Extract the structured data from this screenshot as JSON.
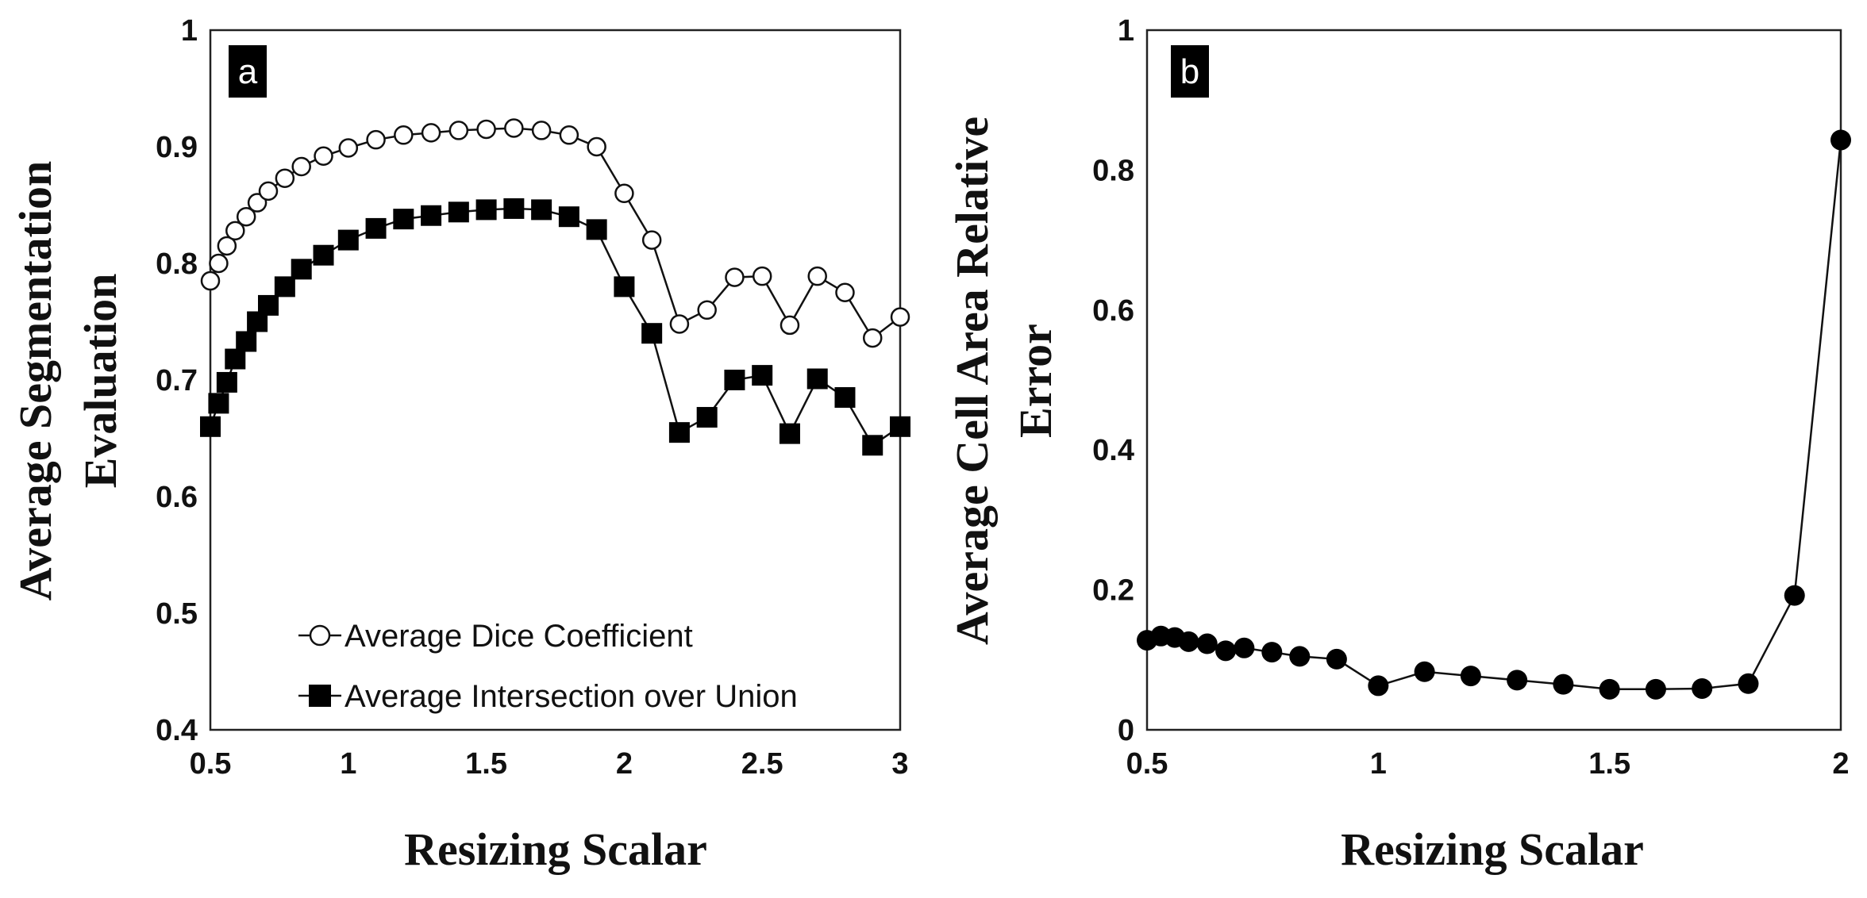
{
  "chart_data": [
    {
      "type": "line",
      "panel_label": "a",
      "xlabel": "Resizing Scalar",
      "ylabel_lines": [
        "Average Segmentation",
        "Evaluation"
      ],
      "xlim": [
        0.5,
        3
      ],
      "ylim": [
        0.4,
        1
      ],
      "xticks": [
        0.5,
        1,
        1.5,
        2,
        2.5,
        3
      ],
      "xtick_labels": [
        "0.5",
        "1",
        "1.5",
        "2",
        "2.5",
        "3"
      ],
      "yticks": [
        0.4,
        0.5,
        0.6,
        0.7,
        0.8,
        0.9,
        1
      ],
      "ytick_labels": [
        "0.4",
        "0.5",
        "0.6",
        "0.7",
        "0.8",
        "0.9",
        "1"
      ],
      "grid": false,
      "legend_position": "bottom-center",
      "series": [
        {
          "name": "Average Dice Coefficient",
          "marker": "open-circle",
          "x": [
            0.5,
            0.53,
            0.56,
            0.59,
            0.63,
            0.67,
            0.71,
            0.77,
            0.83,
            0.91,
            1.0,
            1.1,
            1.2,
            1.3,
            1.4,
            1.5,
            1.6,
            1.7,
            1.8,
            1.9,
            2.0,
            2.1,
            2.2,
            2.3,
            2.4,
            2.5,
            2.6,
            2.7,
            2.8,
            2.9,
            3.0
          ],
          "y": [
            0.785,
            0.8,
            0.815,
            0.828,
            0.84,
            0.852,
            0.862,
            0.873,
            0.883,
            0.892,
            0.899,
            0.906,
            0.91,
            0.912,
            0.914,
            0.915,
            0.916,
            0.914,
            0.91,
            0.9,
            0.86,
            0.82,
            0.748,
            0.76,
            0.788,
            0.789,
            0.747,
            0.789,
            0.775,
            0.736,
            0.754
          ]
        },
        {
          "name": "Average  Intersection over Union",
          "marker": "filled-square",
          "x": [
            0.5,
            0.53,
            0.56,
            0.59,
            0.63,
            0.67,
            0.71,
            0.77,
            0.83,
            0.91,
            1.0,
            1.1,
            1.2,
            1.3,
            1.4,
            1.5,
            1.6,
            1.7,
            1.8,
            1.9,
            2.0,
            2.1,
            2.2,
            2.3,
            2.4,
            2.5,
            2.6,
            2.7,
            2.8,
            2.9,
            3.0
          ],
          "y": [
            0.66,
            0.68,
            0.698,
            0.718,
            0.733,
            0.75,
            0.764,
            0.78,
            0.795,
            0.807,
            0.82,
            0.83,
            0.838,
            0.841,
            0.844,
            0.846,
            0.847,
            0.846,
            0.84,
            0.829,
            0.78,
            0.74,
            0.655,
            0.668,
            0.7,
            0.704,
            0.654,
            0.701,
            0.685,
            0.644,
            0.66
          ]
        }
      ]
    },
    {
      "type": "line",
      "panel_label": "b",
      "xlabel": "Resizing Scalar",
      "ylabel_lines": [
        "Average Cell Area Relative",
        "Error"
      ],
      "xlim": [
        0.5,
        2
      ],
      "ylim": [
        0,
        1
      ],
      "xticks": [
        0.5,
        1,
        1.5,
        2
      ],
      "xtick_labels": [
        "0.5",
        "1",
        "1.5",
        "2"
      ],
      "yticks": [
        0,
        0.2,
        0.4,
        0.6,
        0.8,
        1
      ],
      "ytick_labels": [
        "0",
        "0.2",
        "0.4",
        "0.6",
        "0.8",
        "1"
      ],
      "grid": false,
      "series": [
        {
          "name": "Average Cell Area Relative Error",
          "marker": "filled-circle",
          "x": [
            0.5,
            0.53,
            0.56,
            0.59,
            0.63,
            0.67,
            0.71,
            0.77,
            0.83,
            0.91,
            1.0,
            1.1,
            1.2,
            1.3,
            1.4,
            1.5,
            1.6,
            1.7,
            1.8,
            1.9,
            2.0
          ],
          "y": [
            0.128,
            0.134,
            0.132,
            0.126,
            0.123,
            0.113,
            0.117,
            0.111,
            0.105,
            0.101,
            0.063,
            0.083,
            0.077,
            0.071,
            0.065,
            0.058,
            0.058,
            0.059,
            0.066,
            0.192,
            0.843
          ]
        }
      ]
    }
  ]
}
